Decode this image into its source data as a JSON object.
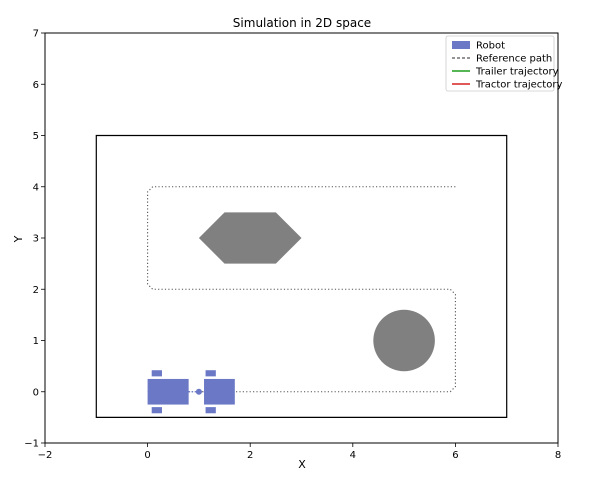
{
  "chart_data": {
    "type": "line",
    "title": "Simulation in 2D space",
    "xlabel": "X",
    "ylabel": "Y",
    "xlim": [
      -2,
      8
    ],
    "ylim": [
      -1,
      7
    ],
    "xticks": [
      "−2",
      "0",
      "2",
      "4",
      "6",
      "8"
    ],
    "yticks": [
      "−1",
      "0",
      "1",
      "2",
      "3",
      "4",
      "5",
      "6",
      "7"
    ],
    "grid": false,
    "legend_position": "top-right",
    "legend": [
      {
        "label": "Robot",
        "style": "patch",
        "color": "#6a78c6"
      },
      {
        "label": "Reference path",
        "style": "dashed",
        "color": "#555555"
      },
      {
        "label": "Trailer trajectory",
        "style": "solid",
        "color": "#1f9e1f"
      },
      {
        "label": "Tractor trajectory",
        "style": "solid",
        "color": "#d62020"
      }
    ],
    "boundary": {
      "x": [
        -1,
        7,
        7,
        -1
      ],
      "y": [
        -0.5,
        -0.5,
        5,
        5
      ]
    },
    "reference_path": {
      "x": [
        0.0,
        5.9,
        6.0,
        6.0,
        5.9,
        0.1,
        0.0,
        0.0,
        0.1,
        6.0
      ],
      "y": [
        0.0,
        0.0,
        0.1,
        1.9,
        2.0,
        2.0,
        2.1,
        3.9,
        4.0,
        4.0
      ]
    },
    "obstacles": [
      {
        "shape": "hexagon",
        "x": [
          1.0,
          1.5,
          2.5,
          3.0,
          2.5,
          1.5
        ],
        "y": [
          3.0,
          3.5,
          3.5,
          3.0,
          2.5,
          2.5
        ],
        "color": "#808080"
      },
      {
        "shape": "circle",
        "cx": 5.0,
        "cy": 1.0,
        "r": 0.6,
        "color": "#808080"
      }
    ],
    "robot": {
      "color": "#6a78c6",
      "trailer": {
        "x0": 0.0,
        "x1": 0.8,
        "y0": -0.25,
        "y1": 0.25
      },
      "tractor": {
        "x0": 1.1,
        "x1": 1.7,
        "y0": -0.25,
        "y1": 0.25
      },
      "hitch": {
        "x": 1.0,
        "y": 0.0
      },
      "wheels": [
        {
          "x0": 0.08,
          "x1": 0.28,
          "y0": 0.3,
          "y1": 0.42
        },
        {
          "x0": 0.08,
          "x1": 0.28,
          "y0": -0.42,
          "y1": -0.3
        },
        {
          "x0": 1.13,
          "x1": 1.33,
          "y0": 0.3,
          "y1": 0.42
        },
        {
          "x0": 1.13,
          "x1": 1.33,
          "y0": -0.42,
          "y1": -0.3
        }
      ]
    }
  }
}
